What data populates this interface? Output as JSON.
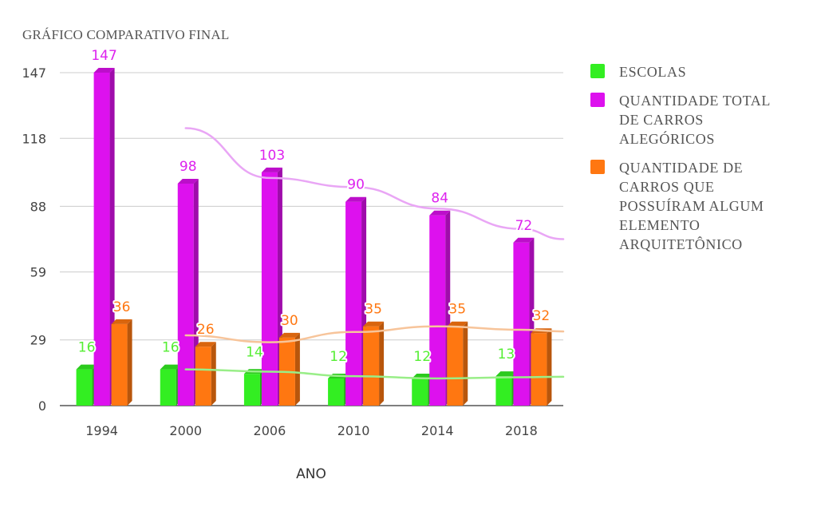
{
  "chart_data": {
    "type": "bar",
    "title": "GRÁFICO COMPARATIVO FINAL",
    "xlabel": "ANO",
    "ylabel": "",
    "categories": [
      "1994",
      "2000",
      "2006",
      "2010",
      "2014",
      "2018"
    ],
    "ylim": [
      0,
      147
    ],
    "yticks": [
      "0",
      "29",
      "59",
      "88",
      "118",
      "147"
    ],
    "grid": true,
    "legend_position": "right",
    "bar_style": "3d",
    "trendlines": true,
    "series": [
      {
        "name": "ESCOLAS",
        "values": [
          16,
          16,
          14,
          12,
          12,
          13
        ],
        "color": "#33ee22",
        "label_color": "#55ee33",
        "trend_color": "#99ee88"
      },
      {
        "name": "QUANTIDADE TOTAL\nDE CARROS\nALEGÓRICOS",
        "values": [
          147,
          98,
          103,
          90,
          84,
          72
        ],
        "color": "#dd11ee",
        "label_color": "#dd22ee",
        "trend_color": "#e9a6f5"
      },
      {
        "name": "QUANTIDADE DE\nCARROS QUE\nPOSSUÍRAM ALGUM\nELEMENTO\nARQUITETÔNICO",
        "values": [
          36,
          26,
          30,
          35,
          35,
          32
        ],
        "color": "#ff7711",
        "label_color": "#ff7711",
        "trend_color": "#f7c49a"
      }
    ]
  }
}
